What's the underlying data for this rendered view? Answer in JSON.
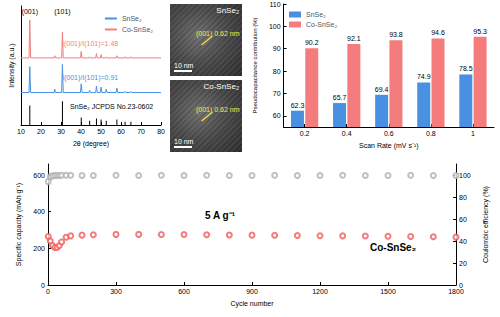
{
  "chart_data": [
    {
      "type": "line",
      "xlabel": "2θ (degree)",
      "ylabel": "Intensity (a.u.)",
      "x": [
        10,
        14.0,
        14.4,
        14.8,
        26.5,
        26.9,
        27.2,
        30.3,
        30.7,
        31.1,
        39.7,
        40.1,
        40.5,
        43.9,
        44.3,
        44.7,
        47.3,
        47.7,
        48.1,
        49.6,
        50.0,
        50.4,
        52.2,
        52.6,
        53.0,
        57.5,
        57.9,
        58.3,
        61.6,
        62,
        62.4,
        64.5,
        64.9,
        65.3,
        80
      ],
      "series": [
        {
          "name": "SnSe₂",
          "color": "#4a90e2",
          "values": [
            30,
            30,
            54,
            30,
            30,
            33,
            30,
            30,
            56,
            30,
            30,
            38,
            30,
            30,
            32,
            30,
            30,
            36,
            30,
            30,
            35,
            30,
            30,
            33,
            30,
            30,
            34,
            30,
            30,
            31,
            30,
            30,
            31,
            30,
            30
          ]
        },
        {
          "name": "Co-SnSe₂",
          "color": "#f08080",
          "values": [
            62,
            62,
            97,
            62,
            62,
            64,
            62,
            62,
            86,
            62,
            62,
            68,
            62,
            62,
            63,
            62,
            62,
            66,
            62,
            62,
            65,
            62,
            62,
            63,
            62,
            62,
            64,
            62,
            62,
            63,
            62,
            62,
            63,
            62,
            62
          ]
        },
        {
          "name": "SnSe₂ JCPDS No.23-0602",
          "type": "bar",
          "color": "#000000",
          "x": [
            14.4,
            30.7,
            40.1,
            44.3,
            47.7,
            50.0,
            52.6,
            57.9,
            62,
            64.9
          ],
          "values": [
            18,
            22,
            7,
            4,
            6,
            5,
            4,
            5,
            3,
            3
          ]
        }
      ],
      "annotations": [
        {
          "text": "(001)",
          "x": 14.4
        },
        {
          "text": "(101)",
          "x": 30.7
        },
        {
          "text": "I(001)/I(101)=1.48",
          "color": "#f08080"
        },
        {
          "text": "I(001)/I(101)=0.91",
          "color": "#4a90e2"
        }
      ],
      "xlim": [
        10,
        80
      ],
      "xticks": [
        10,
        20,
        30,
        40,
        50,
        60,
        70,
        80
      ],
      "ylim": [
        0,
        110
      ],
      "yticks": [],
      "tick_labels": "x",
      "legend": "top-right",
      "grid": false
    },
    {
      "type": "bar",
      "xlabel": "Scan Rate (mV s⁻¹)",
      "ylabel": "Pseudocapacitance contribution (%)",
      "categories": [
        0.2,
        0.4,
        0.6,
        0.8,
        1
      ],
      "series": [
        {
          "name": "SnSe₂",
          "color": "#4a90e2",
          "values": [
            62.3,
            65.7,
            69.4,
            74.9,
            78.5
          ]
        },
        {
          "name": "Co-SnSe₂",
          "color": "#f47c7c",
          "values": [
            90.2,
            92.1,
            93.8,
            94.6,
            95.3
          ]
        }
      ],
      "ylim": [
        55,
        110
      ],
      "yticks": [
        60,
        70,
        80,
        90,
        100,
        110
      ],
      "data_labels": true,
      "legend": "top-left",
      "grid": false
    },
    {
      "type": "scatter",
      "xlabel": "Cycle number",
      "ylabel": "Specific capacity (mAh g⁻¹)",
      "y2label": "Coulombic efficiency (%)",
      "x": [
        1,
        10,
        20,
        30,
        40,
        50,
        60,
        80,
        100,
        150,
        200,
        300,
        400,
        500,
        600,
        700,
        800,
        900,
        1000,
        1100,
        1200,
        1300,
        1400,
        1500,
        1600,
        1700,
        1800
      ],
      "series": [
        {
          "name": "Specific capacity",
          "color": "#f05a5a",
          "marker": "circle",
          "values": [
            265,
            240,
            215,
            205,
            205,
            215,
            235,
            260,
            268,
            272,
            274,
            276,
            276,
            275,
            275,
            274,
            273,
            272,
            271,
            270,
            269,
            268,
            267,
            266,
            265,
            263,
            261
          ]
        },
        {
          "name": "Coulombic efficiency",
          "color": "#b0b0b0",
          "marker": "circle",
          "axis": "y2",
          "values": [
            94,
            98.5,
            99.2,
            99.5,
            99.6,
            99.6,
            99.7,
            99.7,
            99.7,
            99.6,
            99.6,
            99.7,
            99.6,
            99.7,
            99.6,
            99.7,
            99.6,
            99.6,
            99.7,
            99.6,
            99.6,
            99.7,
            99.6,
            99.6,
            99.7,
            99.6,
            99.6
          ]
        }
      ],
      "annotations": [
        {
          "text": "5 A g⁻¹"
        },
        {
          "text": "Co-SnSe₂"
        }
      ],
      "xlim": [
        0,
        1800
      ],
      "xticks": [
        0,
        300,
        600,
        900,
        1200,
        1500,
        1800
      ],
      "ylim": [
        0,
        660
      ],
      "yticks": [
        0,
        200,
        400,
        600
      ],
      "y2lim": [
        0,
        110
      ],
      "y2ticks": [
        0,
        20,
        40,
        60,
        80,
        100
      ],
      "grid": false
    }
  ],
  "images": [
    {
      "label": "SnSe₂",
      "annotation": "(001) 0.62 nm",
      "scale_bar": "10 nm"
    },
    {
      "label": "Co-SnSe₂",
      "annotation": "(001) 0.62 nm",
      "scale_bar": "10 nm"
    }
  ]
}
